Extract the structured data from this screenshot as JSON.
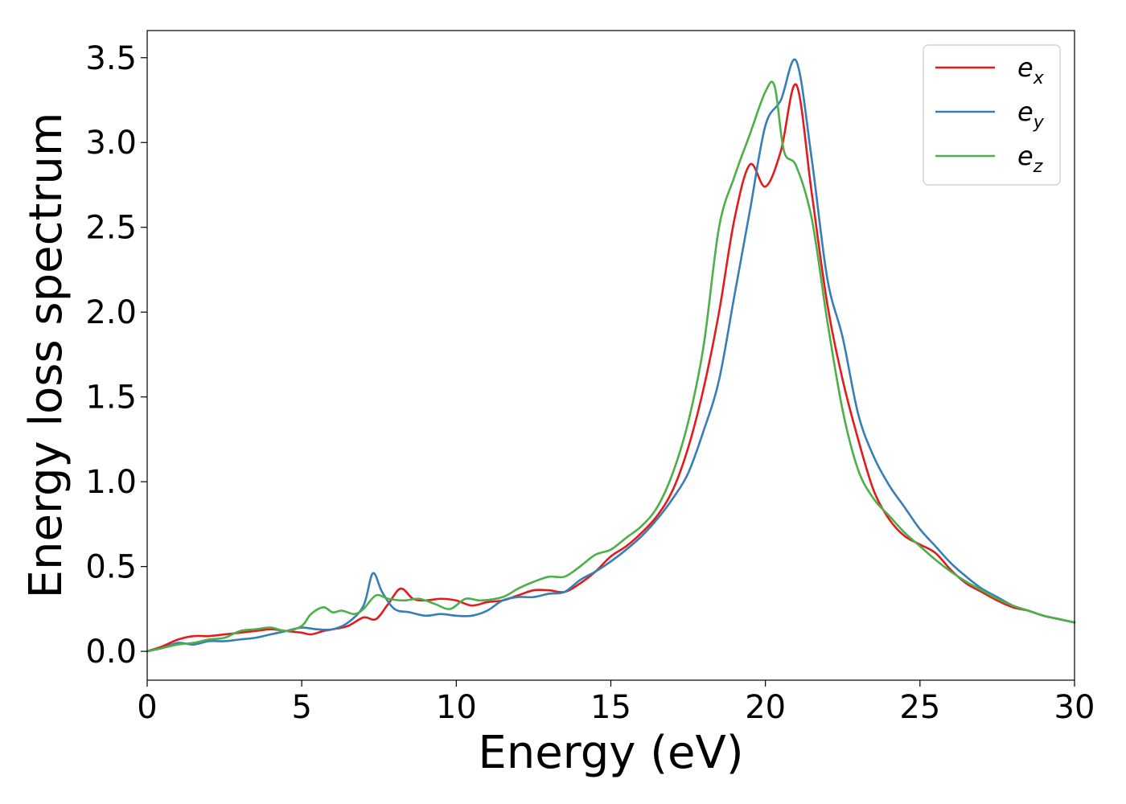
{
  "chart_data": {
    "type": "line",
    "title": "",
    "xlabel": "Energy (eV)",
    "ylabel": "Energy loss spectrum",
    "xlim": [
      0,
      30
    ],
    "ylim": [
      -0.17,
      3.66
    ],
    "xticks": [
      "0",
      "5",
      "10",
      "15",
      "20",
      "25",
      "30"
    ],
    "yticks": [
      "0.0",
      "0.5",
      "1.0",
      "1.5",
      "2.0",
      "2.5",
      "3.0",
      "3.5"
    ],
    "grid": false,
    "legend_position": "top-right",
    "series": [
      {
        "name": "e_x",
        "label_base": "e",
        "label_sub": "x",
        "color": "#e41a1c",
        "x": [
          0,
          0.5,
          1,
          1.5,
          2,
          2.5,
          3,
          3.5,
          4,
          4.5,
          5,
          5.3,
          5.7,
          6,
          6.5,
          7,
          7.4,
          7.8,
          8.2,
          8.6,
          9,
          9.5,
          10,
          10.5,
          11,
          11.5,
          12,
          12.5,
          13,
          13.5,
          14,
          14.5,
          15,
          15.5,
          16,
          16.5,
          17,
          17.5,
          18,
          18.5,
          19,
          19.5,
          20,
          20.5,
          21,
          21.5,
          22,
          22.5,
          23,
          23.5,
          24,
          24.5,
          25,
          25.5,
          26,
          26.5,
          27,
          27.5,
          28,
          28.5,
          29,
          29.5,
          30
        ],
        "y": [
          0.0,
          0.03,
          0.07,
          0.09,
          0.09,
          0.1,
          0.11,
          0.12,
          0.13,
          0.12,
          0.11,
          0.1,
          0.12,
          0.13,
          0.15,
          0.2,
          0.19,
          0.28,
          0.37,
          0.31,
          0.3,
          0.31,
          0.3,
          0.27,
          0.29,
          0.3,
          0.33,
          0.36,
          0.36,
          0.35,
          0.4,
          0.47,
          0.56,
          0.62,
          0.7,
          0.8,
          0.95,
          1.2,
          1.55,
          2.0,
          2.55,
          2.87,
          2.74,
          2.95,
          3.34,
          2.7,
          2.05,
          1.6,
          1.25,
          0.95,
          0.78,
          0.68,
          0.63,
          0.58,
          0.48,
          0.4,
          0.35,
          0.3,
          0.26,
          0.24,
          0.21,
          0.19,
          0.17
        ]
      },
      {
        "name": "e_y",
        "label_base": "e",
        "label_sub": "y",
        "color": "#377eb8",
        "x": [
          0,
          0.5,
          1,
          1.5,
          2,
          2.5,
          3,
          3.5,
          4,
          4.5,
          5,
          5.5,
          6,
          6.5,
          7,
          7.3,
          7.6,
          8,
          8.5,
          9,
          9.5,
          10,
          10.5,
          11,
          11.5,
          12,
          12.5,
          13,
          13.5,
          14,
          14.5,
          15,
          15.5,
          16,
          16.5,
          17,
          17.5,
          18,
          18.5,
          19,
          19.5,
          20,
          20.5,
          21,
          21.5,
          22,
          22.5,
          23,
          23.5,
          24,
          24.5,
          25,
          25.5,
          26,
          26.5,
          27,
          27.5,
          28,
          28.5,
          29,
          29.5,
          30
        ],
        "y": [
          0.0,
          0.02,
          0.05,
          0.04,
          0.06,
          0.06,
          0.07,
          0.08,
          0.1,
          0.12,
          0.14,
          0.13,
          0.13,
          0.17,
          0.27,
          0.46,
          0.35,
          0.25,
          0.23,
          0.21,
          0.22,
          0.21,
          0.21,
          0.24,
          0.3,
          0.32,
          0.32,
          0.34,
          0.35,
          0.42,
          0.47,
          0.53,
          0.6,
          0.68,
          0.78,
          0.9,
          1.05,
          1.3,
          1.6,
          2.1,
          2.6,
          3.1,
          3.25,
          3.48,
          2.9,
          2.2,
          1.85,
          1.4,
          1.15,
          0.98,
          0.85,
          0.72,
          0.62,
          0.52,
          0.44,
          0.37,
          0.32,
          0.27,
          0.24,
          0.21,
          0.19,
          0.17
        ]
      },
      {
        "name": "e_z",
        "label_base": "e",
        "label_sub": "z",
        "color": "#4daf4a",
        "x": [
          0,
          0.5,
          1,
          1.5,
          2,
          2.5,
          3,
          3.5,
          4,
          4.5,
          5,
          5.3,
          5.7,
          6,
          6.3,
          6.7,
          7,
          7.4,
          7.8,
          8.3,
          8.8,
          9.3,
          9.8,
          10.3,
          10.8,
          11.5,
          12,
          12.5,
          13,
          13.5,
          14,
          14.5,
          15,
          15.5,
          16,
          16.5,
          17,
          17.5,
          18,
          18.5,
          19,
          19.5,
          20,
          20.3,
          20.6,
          21,
          21.5,
          22,
          22.5,
          23,
          23.5,
          24,
          24.5,
          25,
          25.5,
          26,
          26.5,
          27,
          27.5,
          28,
          28.5,
          29,
          29.5,
          30
        ],
        "y": [
          0.0,
          0.02,
          0.04,
          0.05,
          0.07,
          0.08,
          0.12,
          0.13,
          0.14,
          0.12,
          0.15,
          0.22,
          0.26,
          0.23,
          0.24,
          0.22,
          0.25,
          0.33,
          0.31,
          0.3,
          0.31,
          0.28,
          0.25,
          0.31,
          0.3,
          0.32,
          0.37,
          0.41,
          0.44,
          0.44,
          0.5,
          0.57,
          0.6,
          0.67,
          0.74,
          0.85,
          1.05,
          1.35,
          1.8,
          2.5,
          2.8,
          3.05,
          3.3,
          3.33,
          2.95,
          2.86,
          2.55,
          1.95,
          1.42,
          1.07,
          0.9,
          0.8,
          0.7,
          0.62,
          0.54,
          0.47,
          0.41,
          0.36,
          0.31,
          0.27,
          0.24,
          0.21,
          0.19,
          0.17
        ]
      }
    ]
  }
}
